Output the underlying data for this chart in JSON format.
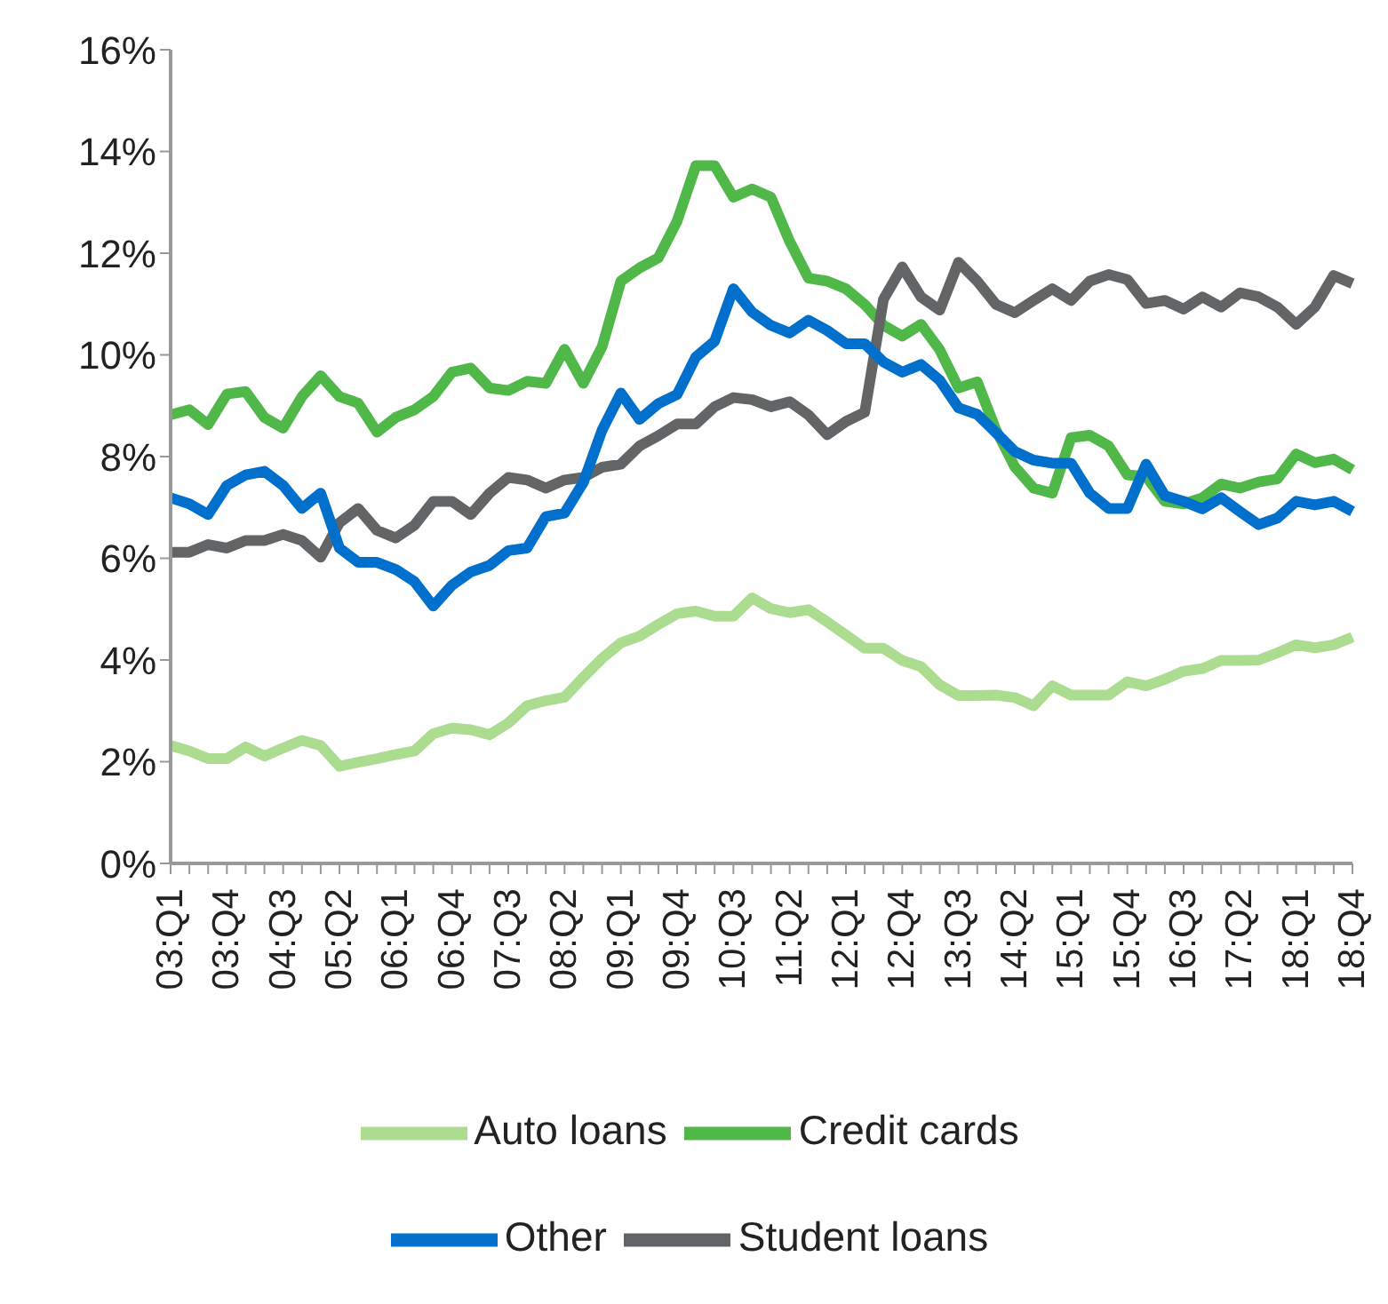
{
  "chart_data": {
    "type": "line",
    "categories": [
      "03:Q1",
      null,
      null,
      "03:Q4",
      null,
      null,
      "04:Q3",
      null,
      null,
      "05:Q2",
      null,
      null,
      "06:Q1",
      null,
      null,
      "06:Q4",
      null,
      null,
      "07:Q3",
      null,
      null,
      "08:Q2",
      null,
      null,
      "09:Q1",
      null,
      null,
      "09:Q4",
      null,
      null,
      "10:Q3",
      null,
      null,
      "11:Q2",
      null,
      null,
      "12:Q1",
      null,
      null,
      "12:Q4",
      null,
      null,
      "13:Q3",
      null,
      null,
      "14:Q2",
      null,
      null,
      "15:Q1",
      null,
      null,
      "15:Q4",
      null,
      null,
      "16:Q3",
      null,
      null,
      "17:Q2",
      null,
      null,
      "18:Q1",
      null,
      null,
      "18:Q4"
    ],
    "series": [
      {
        "name": "Auto loans",
        "color": "#acdc8f",
        "values": [
          2.32,
          2.21,
          2.06,
          2.06,
          2.29,
          2.11,
          2.27,
          2.42,
          2.32,
          1.91,
          1.99,
          2.06,
          2.14,
          2.21,
          2.55,
          2.66,
          2.63,
          2.53,
          2.76,
          3.1,
          3.2,
          3.27,
          3.66,
          4.03,
          4.34,
          4.47,
          4.7,
          4.91,
          4.96,
          4.86,
          4.86,
          5.22,
          5.01,
          4.93,
          4.99,
          4.75,
          4.49,
          4.23,
          4.23,
          3.99,
          3.87,
          3.51,
          3.3,
          3.3,
          3.31,
          3.26,
          3.1,
          3.49,
          3.31,
          3.31,
          3.31,
          3.57,
          3.49,
          3.62,
          3.78,
          3.83,
          3.99,
          3.99,
          4.0,
          4.14,
          4.3,
          4.24,
          4.3,
          4.45
        ]
      },
      {
        "name": "Credit cards",
        "color": "#50b848",
        "values": [
          8.82,
          8.92,
          8.63,
          9.23,
          9.28,
          8.77,
          8.56,
          9.18,
          9.59,
          9.18,
          9.05,
          8.48,
          8.77,
          8.92,
          9.18,
          9.66,
          9.74,
          9.35,
          9.3,
          9.48,
          9.44,
          10.11,
          9.44,
          10.16,
          11.45,
          11.71,
          11.91,
          12.63,
          13.72,
          13.72,
          13.1,
          13.26,
          13.1,
          12.23,
          11.51,
          11.45,
          11.3,
          10.99,
          10.58,
          10.37,
          10.6,
          10.1,
          9.35,
          9.47,
          8.52,
          7.8,
          7.38,
          7.28,
          8.37,
          8.42,
          8.21,
          7.64,
          7.61,
          7.12,
          7.07,
          7.19,
          7.46,
          7.38,
          7.5,
          7.56,
          8.05,
          7.88,
          7.95,
          7.74
        ]
      },
      {
        "name": "Student loans",
        "color": "#636466",
        "values": [
          6.12,
          6.12,
          6.27,
          6.2,
          6.35,
          6.35,
          6.47,
          6.35,
          6.02,
          6.7,
          6.98,
          6.55,
          6.4,
          6.65,
          7.12,
          7.12,
          6.86,
          7.28,
          7.59,
          7.54,
          7.38,
          7.54,
          7.59,
          7.79,
          7.85,
          8.21,
          8.41,
          8.64,
          8.64,
          8.98,
          9.16,
          9.12,
          8.98,
          9.08,
          8.82,
          8.43,
          8.69,
          8.87,
          11.09,
          11.73,
          11.14,
          10.88,
          11.82,
          11.45,
          10.99,
          10.83,
          11.07,
          11.3,
          11.07,
          11.45,
          11.58,
          11.48,
          11.01,
          11.07,
          10.9,
          11.14,
          10.94,
          11.22,
          11.14,
          10.94,
          10.6,
          10.94,
          11.56,
          11.4
        ]
      },
      {
        "name": "Other",
        "color": "#0070cc",
        "values": [
          7.19,
          7.07,
          6.86,
          7.43,
          7.64,
          7.71,
          7.43,
          6.98,
          7.28,
          6.2,
          5.92,
          5.92,
          5.78,
          5.54,
          5.06,
          5.47,
          5.73,
          5.86,
          6.15,
          6.2,
          6.82,
          6.89,
          7.49,
          8.52,
          9.25,
          8.73,
          9.04,
          9.22,
          9.96,
          10.27,
          11.3,
          10.84,
          10.58,
          10.43,
          10.68,
          10.48,
          10.22,
          10.22,
          9.86,
          9.66,
          9.81,
          9.5,
          8.96,
          8.83,
          8.47,
          8.1,
          7.93,
          7.87,
          7.87,
          7.28,
          6.98,
          6.98,
          7.85,
          7.23,
          7.12,
          6.97,
          7.19,
          6.92,
          6.66,
          6.79,
          7.12,
          7.05,
          7.12,
          6.92
        ]
      }
    ],
    "ylim": [
      0,
      16
    ],
    "yticks": [
      {
        "value": 0,
        "label": "0%"
      },
      {
        "value": 2,
        "label": "2%"
      },
      {
        "value": 4,
        "label": "4%"
      },
      {
        "value": 6,
        "label": "6%"
      },
      {
        "value": 8,
        "label": "8%"
      },
      {
        "value": 10,
        "label": "10%"
      },
      {
        "value": 12,
        "label": "12%"
      },
      {
        "value": 14,
        "label": "14%"
      },
      {
        "value": 16,
        "label": "16%"
      }
    ],
    "legend": "bottom",
    "marker": "none",
    "line_style": "solid"
  }
}
